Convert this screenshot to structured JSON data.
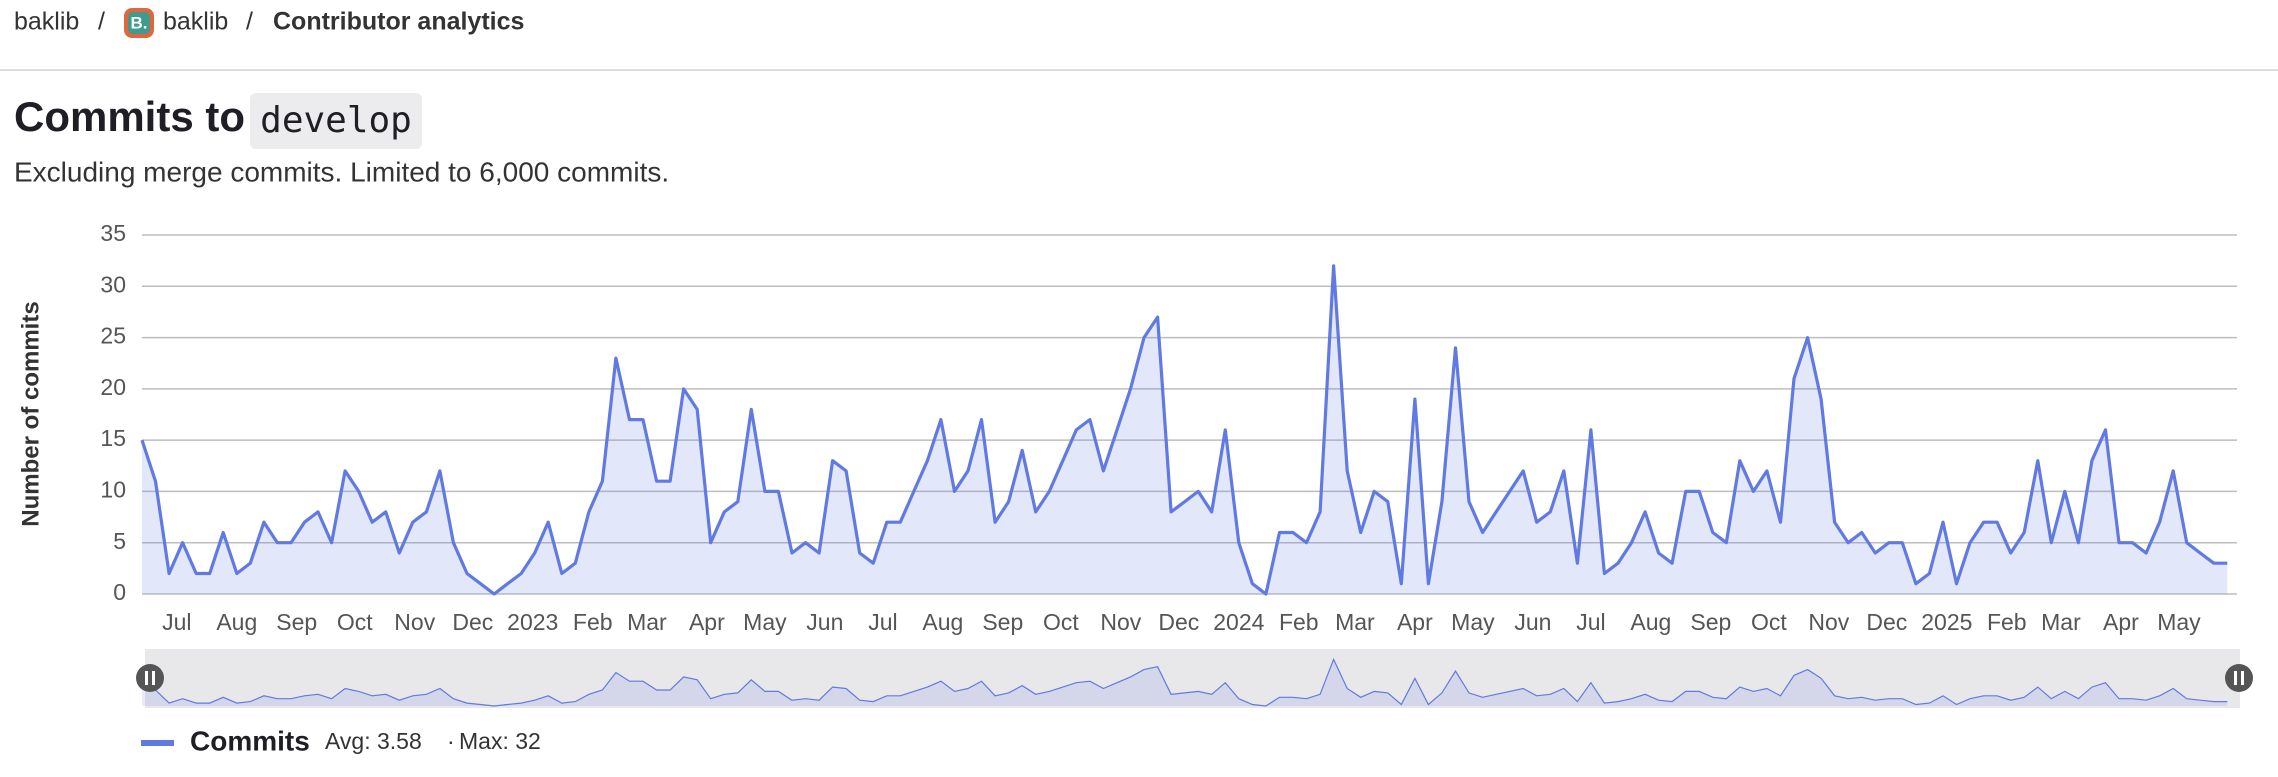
{
  "breadcrumb": [
    "baklib",
    "baklib",
    "Contributor analytics"
  ],
  "avatar_letter": "B.",
  "header": {
    "title": "Commits to",
    "branch": "develop",
    "subtitle": "Excluding merge commits. Limited to 6,000 commits."
  },
  "chart_data": {
    "type": "area",
    "y_label": "Number of commits",
    "xlim": [
      0,
      1083
    ],
    "ylim": [
      0,
      35
    ],
    "yticks": [
      0,
      5,
      10,
      15,
      20,
      25,
      30,
      35
    ],
    "xticks": [
      {
        "value": 18,
        "label": "Jul"
      },
      {
        "value": 49,
        "label": "Aug"
      },
      {
        "value": 80,
        "label": "Sep"
      },
      {
        "value": 110,
        "label": "Oct"
      },
      {
        "value": 141,
        "label": "Nov"
      },
      {
        "value": 171,
        "label": "Dec"
      },
      {
        "value": 202,
        "label": "2023"
      },
      {
        "value": 233,
        "label": "Feb"
      },
      {
        "value": 261,
        "label": "Mar"
      },
      {
        "value": 292,
        "label": "Apr"
      },
      {
        "value": 322,
        "label": "May"
      },
      {
        "value": 353,
        "label": "Jun"
      },
      {
        "value": 383,
        "label": "Jul"
      },
      {
        "value": 414,
        "label": "Aug"
      },
      {
        "value": 445,
        "label": "Sep"
      },
      {
        "value": 475,
        "label": "Oct"
      },
      {
        "value": 506,
        "label": "Nov"
      },
      {
        "value": 536,
        "label": "Dec"
      },
      {
        "value": 567,
        "label": "2024"
      },
      {
        "value": 598,
        "label": "Feb"
      },
      {
        "value": 627,
        "label": "Mar"
      },
      {
        "value": 658,
        "label": "Apr"
      },
      {
        "value": 688,
        "label": "May"
      },
      {
        "value": 719,
        "label": "Jun"
      },
      {
        "value": 749,
        "label": "Jul"
      },
      {
        "value": 780,
        "label": "Aug"
      },
      {
        "value": 811,
        "label": "Sep"
      },
      {
        "value": 841,
        "label": "Oct"
      },
      {
        "value": 872,
        "label": "Nov"
      },
      {
        "value": 902,
        "label": "Dec"
      },
      {
        "value": 933,
        "label": "2025"
      },
      {
        "value": 964,
        "label": "Feb"
      },
      {
        "value": 992,
        "label": "Mar"
      },
      {
        "value": 1023,
        "label": "Apr"
      },
      {
        "value": 1053,
        "label": "May"
      }
    ],
    "grid": true,
    "x": [
      0,
      7,
      14,
      21,
      28,
      35,
      42,
      49,
      56,
      63,
      70,
      77,
      84,
      91,
      98,
      105,
      112,
      119,
      126,
      133,
      140,
      147,
      154,
      161,
      168,
      175,
      182,
      189,
      196,
      203,
      210,
      217,
      224,
      231,
      238,
      245,
      252,
      259,
      266,
      273,
      280,
      287,
      294,
      301,
      308,
      315,
      322,
      329,
      336,
      343,
      350,
      357,
      364,
      371,
      378,
      385,
      392,
      399,
      406,
      413,
      420,
      427,
      434,
      441,
      448,
      455,
      462,
      469,
      476,
      483,
      490,
      497,
      504,
      511,
      518,
      525,
      532,
      539,
      546,
      553,
      560,
      567,
      574,
      581,
      588,
      595,
      602,
      609,
      616,
      623,
      630,
      637,
      644,
      651,
      658,
      665,
      672,
      679,
      686,
      693,
      700,
      707,
      714,
      721,
      728,
      735,
      742,
      749,
      756,
      763,
      770,
      777,
      784,
      791,
      798,
      805,
      812,
      819,
      826,
      833,
      840,
      847,
      854,
      861,
      868,
      875,
      882,
      889,
      896,
      903,
      910,
      917,
      924,
      931,
      938,
      945,
      952,
      959,
      966,
      973,
      980,
      987,
      994,
      1001,
      1008,
      1015,
      1022,
      1029,
      1036,
      1043,
      1050,
      1057,
      1064,
      1071,
      1078
    ],
    "series": [
      {
        "name": "Commits",
        "color": "#617ae2",
        "values": [
          15,
          11,
          2,
          5,
          2,
          2,
          6,
          2,
          3,
          7,
          5,
          5,
          7,
          8,
          5,
          12,
          10,
          7,
          8,
          4,
          7,
          8,
          12,
          5,
          2,
          1,
          0,
          1,
          2,
          4,
          7,
          2,
          3,
          8,
          11,
          23,
          17,
          17,
          11,
          11,
          20,
          18,
          5,
          8,
          9,
          18,
          10,
          10,
          4,
          5,
          4,
          13,
          12,
          4,
          3,
          7,
          7,
          10,
          13,
          17,
          10,
          12,
          17,
          7,
          9,
          14,
          8,
          10,
          13,
          16,
          17,
          12,
          16,
          20,
          25,
          27,
          8,
          9,
          10,
          8,
          16,
          5,
          1,
          0,
          6,
          6,
          5,
          8,
          32,
          12,
          6,
          10,
          9,
          1,
          19,
          1,
          9,
          24,
          9,
          6,
          8,
          10,
          12,
          7,
          8,
          12,
          3,
          16,
          2,
          3,
          5,
          8,
          4,
          3,
          10,
          10,
          6,
          5,
          13,
          10,
          12,
          7,
          21,
          25,
          19,
          7,
          5,
          6,
          4,
          5,
          5,
          1,
          2,
          7,
          1,
          5,
          7,
          7,
          4,
          6,
          13,
          5,
          10,
          5,
          13,
          16,
          5,
          5,
          4,
          7,
          12,
          5,
          4,
          3,
          3
        ]
      }
    ],
    "legend_stats": [
      "Avg: 3.58",
      "Max: 32"
    ]
  }
}
